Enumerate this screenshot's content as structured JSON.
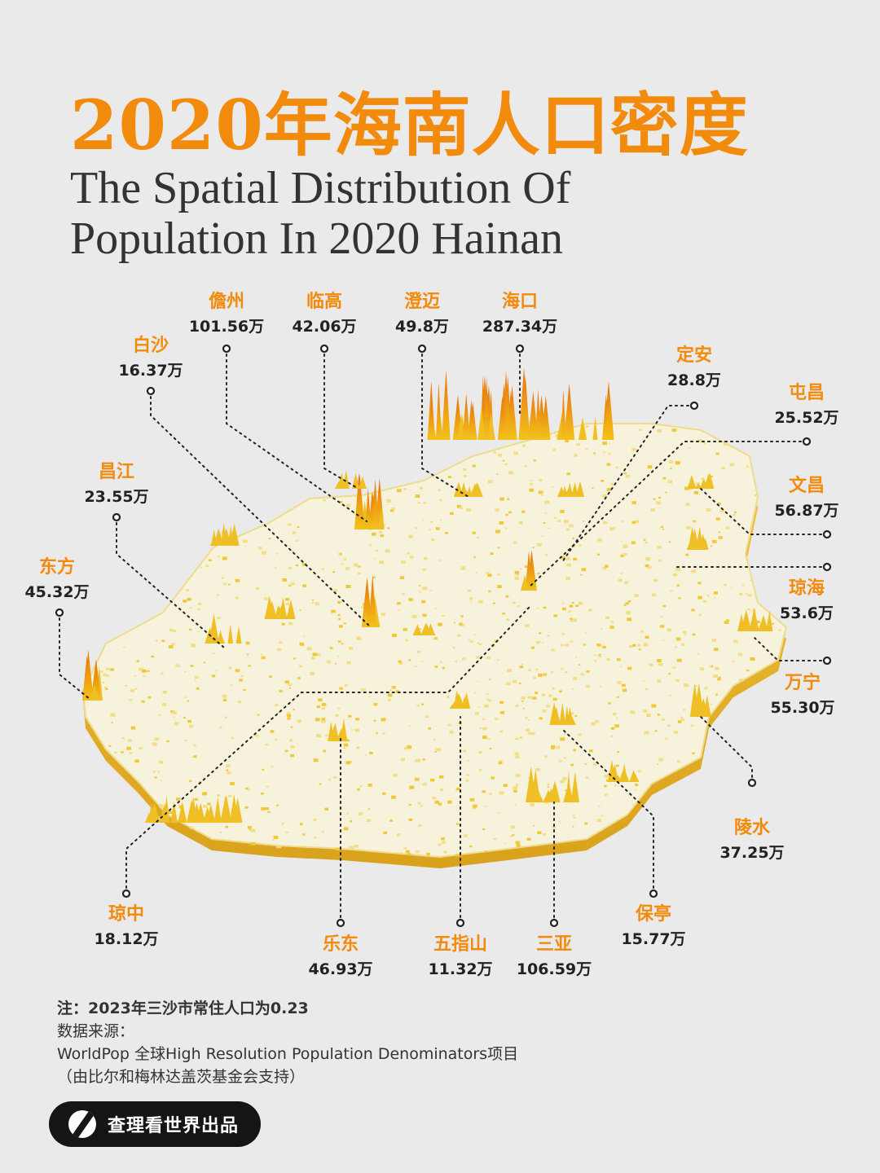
{
  "title_cn": "2020年海南人口密度",
  "title_en_line1": "The Spatial Distribution Of",
  "title_en_line2": "Population In 2020 Hainan",
  "labels": [
    {
      "name": "儋州",
      "value": "101.56万"
    },
    {
      "name": "临高",
      "value": "42.06万"
    },
    {
      "name": "澄迈",
      "value": "49.8万"
    },
    {
      "name": "海口",
      "value": "287.34万"
    },
    {
      "name": "白沙",
      "value": "16.37万"
    },
    {
      "name": "定安",
      "value": "28.8万"
    },
    {
      "name": "屯昌",
      "value": "25.52万"
    },
    {
      "name": "昌江",
      "value": "23.55万"
    },
    {
      "name": "文昌",
      "value": "56.87万"
    },
    {
      "name": "东方",
      "value": "45.32万"
    },
    {
      "name": "琼海",
      "value": "53.6万"
    },
    {
      "name": "万宁",
      "value": "55.30万"
    },
    {
      "name": "陵水",
      "value": "37.25万"
    },
    {
      "name": "琼中",
      "value": "18.12万"
    },
    {
      "name": "乐东",
      "value": "46.93万"
    },
    {
      "name": "五指山",
      "value": "11.32万"
    },
    {
      "name": "三亚",
      "value": "106.59万"
    },
    {
      "name": "保亭",
      "value": "15.77万"
    }
  ],
  "notes": {
    "line1": "注：2023年三沙市常住人口为0.23",
    "line2": "数据来源：",
    "line3": "WorldPop 全球High Resolution Population Denominators项目",
    "line4": "（由比尔和梅林达盖茨基金会支持）"
  },
  "brand": "查理看世界出品",
  "colors": {
    "accent": "#f28a0c",
    "map_base": "#f6f2dc",
    "spike": "#f2c21a",
    "background": "#ebeaea"
  }
}
